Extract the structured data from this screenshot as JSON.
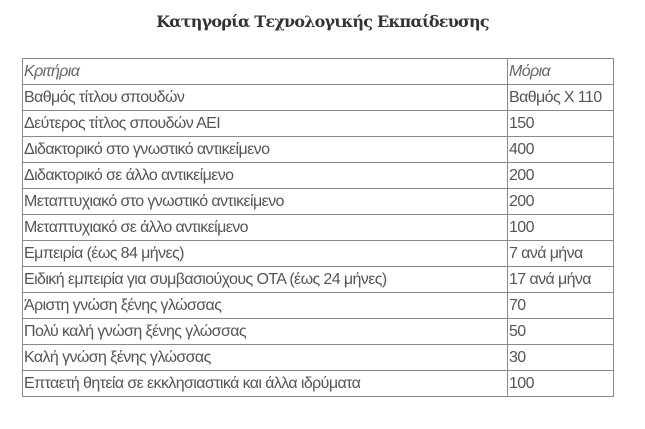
{
  "title": "Κατηγορία Τεχνολογικής Εκπαίδευσης",
  "table": {
    "headers": [
      "Κριτήρια",
      "Μόρια"
    ],
    "rows": [
      [
        "Βαθμός τίτλου σπουδών",
        "Βαθμός Χ 110"
      ],
      [
        "Δεύτερος τίτλος σπουδών ΑΕΙ",
        "150"
      ],
      [
        "Διδακτορικό στο γνωστικό αντικείμενο",
        "400"
      ],
      [
        "Διδακτορικό σε άλλο αντικείμενο",
        "200"
      ],
      [
        "Μεταπτυχιακό στο γνωστικό αντικείμενο",
        "200"
      ],
      [
        "Μεταπτυχιακό σε άλλο αντικείμενο",
        "100"
      ],
      [
        "Εμπειρία (έως 84 μήνες)",
        "7 ανά μήνα"
      ],
      [
        "Ειδική εμπειρία για συμβασιούχους ΟΤΑ (έως 24 μήνες)",
        "17 ανά μήνα"
      ],
      [
        "Άριστη γνώση ξένης γλώσσας",
        "70"
      ],
      [
        "Πολύ καλή γνώση ξένης γλώσσας",
        "50"
      ],
      [
        "Καλή γνώση ξένης γλώσσας",
        "30"
      ],
      [
        "Επταετή θητεία σε εκκλησιαστικά και άλλα ιδρύματα",
        "100"
      ]
    ]
  }
}
